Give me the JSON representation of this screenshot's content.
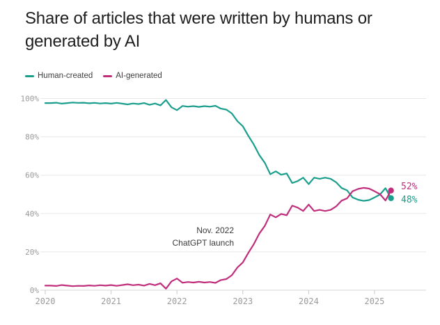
{
  "header": {
    "title": "Share of articles that were written by humans or generated by AI"
  },
  "legend": [
    {
      "label": "Human-created",
      "color": "#1a9e8c"
    },
    {
      "label": "AI-generated",
      "color": "#c02d7b"
    }
  ],
  "annotation": {
    "line1": "Nov. 2022",
    "line2": "ChatGPT launch"
  },
  "end_labels": [
    {
      "text": "52%",
      "color": "#c02d7b",
      "series": "AI-generated"
    },
    {
      "text": "48%",
      "color": "#1a9e8c",
      "series": "Human-created"
    }
  ],
  "chart_data": {
    "type": "line",
    "title": "Share of articles that were written by humans or generated by AI",
    "x_unit": "month",
    "x_start": "2020-01",
    "x_end": "2025-04",
    "x_tick_labels": [
      "2020",
      "2021",
      "2022",
      "2023",
      "2024",
      "2025"
    ],
    "y_tick_labels": [
      "100%",
      "80%",
      "60%",
      "40%",
      "20%",
      "0%"
    ],
    "y_tick_values": [
      100,
      80,
      60,
      40,
      20,
      0
    ],
    "ylim": [
      0,
      100
    ],
    "grid": "horizontal",
    "legend_position": "top-left",
    "annotation": {
      "text": "Nov. 2022 ChatGPT launch",
      "x": "2022-11"
    },
    "series": [
      {
        "name": "Human-created",
        "color": "#1a9e8c",
        "end_value": 48,
        "end_label": "48%",
        "values": [
          97.6,
          97.6,
          97.8,
          97.3,
          97.6,
          97.9,
          97.7,
          97.8,
          97.5,
          97.7,
          97.4,
          97.6,
          97.3,
          97.7,
          97.3,
          96.9,
          97.4,
          97.1,
          97.6,
          96.7,
          97.4,
          96.4,
          99.2,
          95.4,
          93.9,
          96.1,
          95.7,
          96.0,
          95.6,
          96.0,
          95.7,
          96.2,
          94.7,
          94.2,
          92.2,
          88.2,
          85.5,
          80.5,
          76.0,
          70.5,
          66.5,
          60.5,
          62.0,
          60.2,
          60.9,
          55.9,
          56.9,
          58.7,
          55.3,
          58.7,
          58.1,
          58.7,
          58.1,
          56.3,
          53.3,
          52.1,
          48.4,
          47.2,
          46.6,
          47.0,
          48.4,
          49.9,
          53.2,
          48.0
        ]
      },
      {
        "name": "AI-generated",
        "color": "#c02d7b",
        "end_value": 52,
        "end_label": "52%",
        "values": [
          2.4,
          2.4,
          2.2,
          2.7,
          2.4,
          2.1,
          2.3,
          2.2,
          2.5,
          2.3,
          2.6,
          2.4,
          2.7,
          2.3,
          2.7,
          3.1,
          2.6,
          2.9,
          2.4,
          3.3,
          2.6,
          3.6,
          0.8,
          4.6,
          6.1,
          3.9,
          4.3,
          4.0,
          4.4,
          4.0,
          4.3,
          3.8,
          5.3,
          5.8,
          7.8,
          11.8,
          14.5,
          19.5,
          24.0,
          29.5,
          33.5,
          39.5,
          38.0,
          39.8,
          39.1,
          44.1,
          43.1,
          41.3,
          44.7,
          41.3,
          41.9,
          41.3,
          41.9,
          43.7,
          46.7,
          47.9,
          51.6,
          52.8,
          53.4,
          53.0,
          51.6,
          50.1,
          46.8,
          52.0
        ]
      }
    ]
  }
}
